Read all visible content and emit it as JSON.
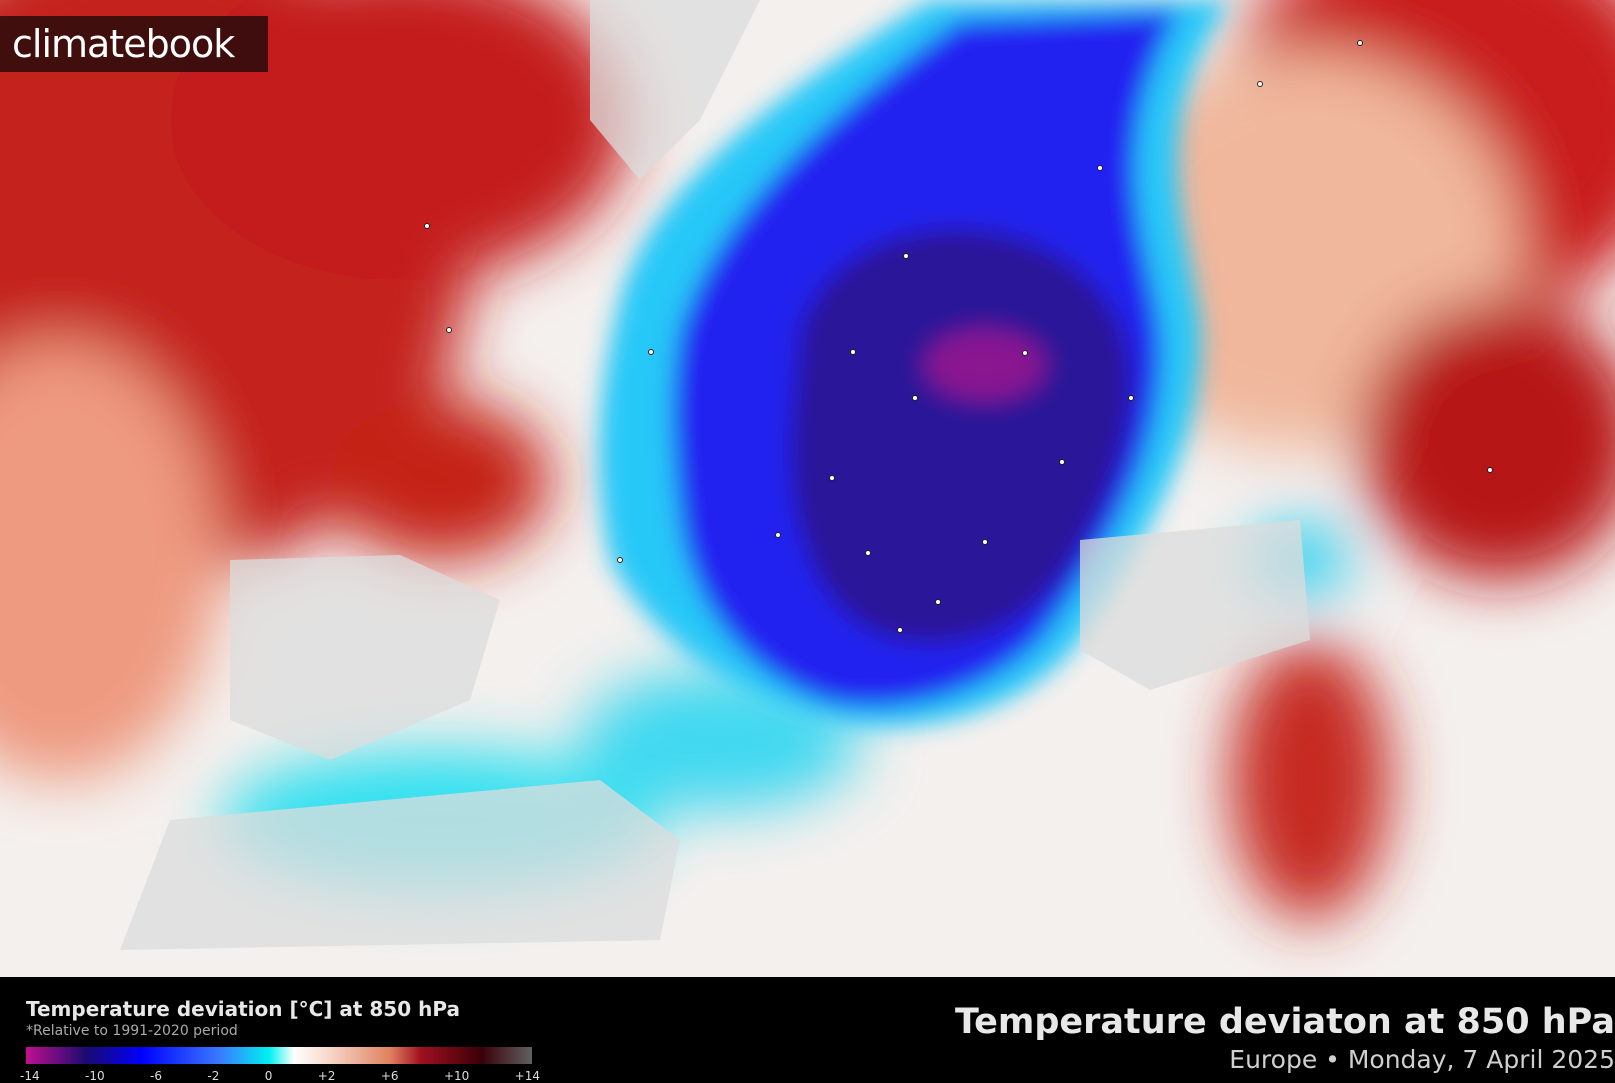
{
  "logo": "climatebook",
  "legend": {
    "title": "Temperature deviation [°C] at 850 hPa",
    "subtitle": "*Relative to 1991-2020 period",
    "ticks": [
      "-14",
      "-10",
      "-6",
      "-2",
      "0",
      "+2",
      "+6",
      "+10",
      "+14"
    ]
  },
  "header": {
    "title": "Temperature deviaton at 850 hPa",
    "subtitle": "Europe • Monday, 7 April 2025"
  },
  "colors": {
    "cold_extreme": "#c0108f",
    "cold": "#0000ff",
    "cool": "#00f0f0",
    "neutral": "#ffffff",
    "warm": "#e08060",
    "hot": "#a01020"
  }
}
